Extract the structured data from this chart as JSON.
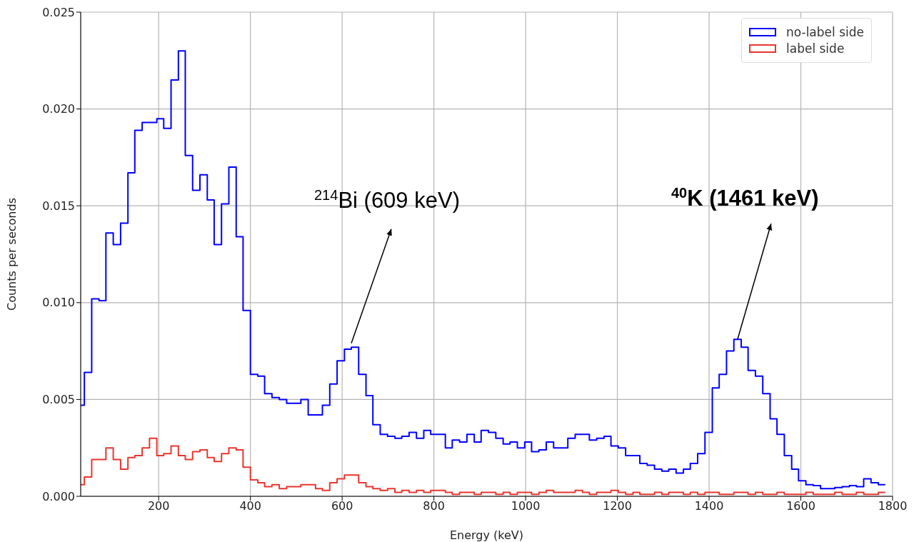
{
  "chart_data": {
    "type": "step",
    "xlabel": "Energy (keV)",
    "ylabel": "Counts per seconds",
    "x": [
      30,
      38,
      54,
      70,
      85,
      101,
      117,
      133,
      148,
      164,
      180,
      196,
      211,
      227,
      243,
      258,
      274,
      290,
      306,
      321,
      337,
      353,
      369,
      384,
      400,
      416,
      431,
      447,
      463,
      479,
      494,
      510,
      526,
      542,
      557,
      573,
      589,
      605,
      620,
      636,
      652,
      667,
      683,
      699,
      715,
      730,
      746,
      762,
      778,
      793,
      809,
      825,
      840,
      856,
      872,
      888,
      903,
      919,
      935,
      951,
      966,
      982,
      998,
      1013,
      1029,
      1045,
      1061,
      1076,
      1092,
      1108,
      1124,
      1139,
      1155,
      1171,
      1186,
      1202,
      1218,
      1234,
      1249,
      1265,
      1281,
      1297,
      1312,
      1328,
      1344,
      1359,
      1375,
      1391,
      1407,
      1422,
      1438,
      1454,
      1470,
      1485,
      1501,
      1517,
      1533,
      1548,
      1564,
      1580,
      1595,
      1611,
      1627,
      1643,
      1658,
      1674,
      1690,
      1706,
      1721,
      1737,
      1753,
      1769,
      1784
    ],
    "series": [
      {
        "name": "no-label side",
        "color": "#0000ff",
        "values": [
          0.0047,
          0.0064,
          0.0102,
          0.0101,
          0.0136,
          0.013,
          0.0141,
          0.0167,
          0.0189,
          0.0193,
          0.0193,
          0.0195,
          0.019,
          0.0215,
          0.023,
          0.0176,
          0.0158,
          0.0166,
          0.0153,
          0.013,
          0.0151,
          0.017,
          0.0134,
          0.0096,
          0.0063,
          0.0062,
          0.0053,
          0.0051,
          0.005,
          0.0048,
          0.0048,
          0.005,
          0.0042,
          0.0042,
          0.0047,
          0.0058,
          0.007,
          0.0076,
          0.0077,
          0.0063,
          0.0052,
          0.0037,
          0.0032,
          0.0031,
          0.003,
          0.0031,
          0.0033,
          0.003,
          0.0034,
          0.0032,
          0.0032,
          0.0025,
          0.0029,
          0.0028,
          0.0032,
          0.0028,
          0.0034,
          0.0033,
          0.003,
          0.0027,
          0.0028,
          0.0025,
          0.0028,
          0.0023,
          0.0024,
          0.0028,
          0.0025,
          0.0025,
          0.003,
          0.0032,
          0.0032,
          0.0029,
          0.003,
          0.0031,
          0.0026,
          0.0025,
          0.0021,
          0.0021,
          0.0017,
          0.0016,
          0.0014,
          0.0013,
          0.0014,
          0.0012,
          0.0014,
          0.0017,
          0.0022,
          0.0033,
          0.0056,
          0.0063,
          0.0075,
          0.0081,
          0.0077,
          0.0065,
          0.0062,
          0.0053,
          0.004,
          0.0032,
          0.0021,
          0.0014,
          0.0008,
          0.0006,
          0.00055,
          0.0004,
          0.0004,
          0.00045,
          0.0005,
          0.00055,
          0.0005,
          0.0009,
          0.0007,
          0.0006,
          0.0006
        ]
      },
      {
        "name": "label side",
        "color": "#e8362e",
        "values": [
          0.0006,
          0.001,
          0.0019,
          0.0019,
          0.0025,
          0.0019,
          0.0014,
          0.002,
          0.0021,
          0.0025,
          0.003,
          0.0021,
          0.0022,
          0.0026,
          0.0021,
          0.0019,
          0.0023,
          0.0024,
          0.002,
          0.0018,
          0.0022,
          0.0025,
          0.0024,
          0.0015,
          0.00085,
          0.0007,
          0.0005,
          0.0006,
          0.0004,
          0.0005,
          0.0005,
          0.0006,
          0.0006,
          0.0004,
          0.0003,
          0.0007,
          0.0009,
          0.0011,
          0.0011,
          0.0007,
          0.0005,
          0.0004,
          0.0003,
          0.0004,
          0.0002,
          0.0003,
          0.0002,
          0.0003,
          0.0002,
          0.0003,
          0.0003,
          0.0002,
          0.0001,
          0.0002,
          0.0002,
          0.0001,
          0.0002,
          0.0002,
          0.0001,
          0.0002,
          0.0001,
          0.0002,
          0.0002,
          0.0001,
          0.0002,
          0.0003,
          0.0002,
          0.0002,
          0.0002,
          0.0003,
          0.0002,
          0.0001,
          0.0002,
          0.0002,
          0.0003,
          0.0002,
          0.0001,
          0.0002,
          0.0001,
          0.0001,
          0.0002,
          0.0001,
          0.0002,
          0.0002,
          0.0001,
          0.0002,
          0.0001,
          0.0002,
          0.0002,
          0.0001,
          0.0001,
          0.0002,
          0.0002,
          0.0001,
          0.0002,
          0.0001,
          0.0001,
          0.0002,
          0.0001,
          0.0001,
          0.0001,
          0.0002,
          0.0001,
          0.0001,
          0.0001,
          0.0002,
          0.0001,
          0.0001,
          0.0002,
          0.0001,
          0.0001,
          0.0002,
          0.0002
        ]
      }
    ],
    "xlim": [
      30,
      1800
    ],
    "xticks": [
      200,
      400,
      600,
      800,
      1000,
      1200,
      1400,
      1600,
      1800
    ],
    "ylim": [
      0,
      0.025
    ],
    "yticks": [
      {
        "value": 0,
        "label": "0.000"
      },
      {
        "value": 0.005,
        "label": "0.005"
      },
      {
        "value": 0.01,
        "label": "0.010"
      },
      {
        "value": 0.015,
        "label": "0.015"
      },
      {
        "value": 0.02,
        "label": "0.020"
      },
      {
        "value": 0.025,
        "label": "0.025"
      }
    ],
    "grid": true,
    "legend": "top right",
    "annotations": [
      {
        "text": "$^{214}$Bi (609 keV)",
        "x": 620,
        "y": 0.0079
      },
      {
        "text": "$^{40}$K (1461 keV)",
        "x": 1462,
        "y": 0.0081
      }
    ]
  }
}
